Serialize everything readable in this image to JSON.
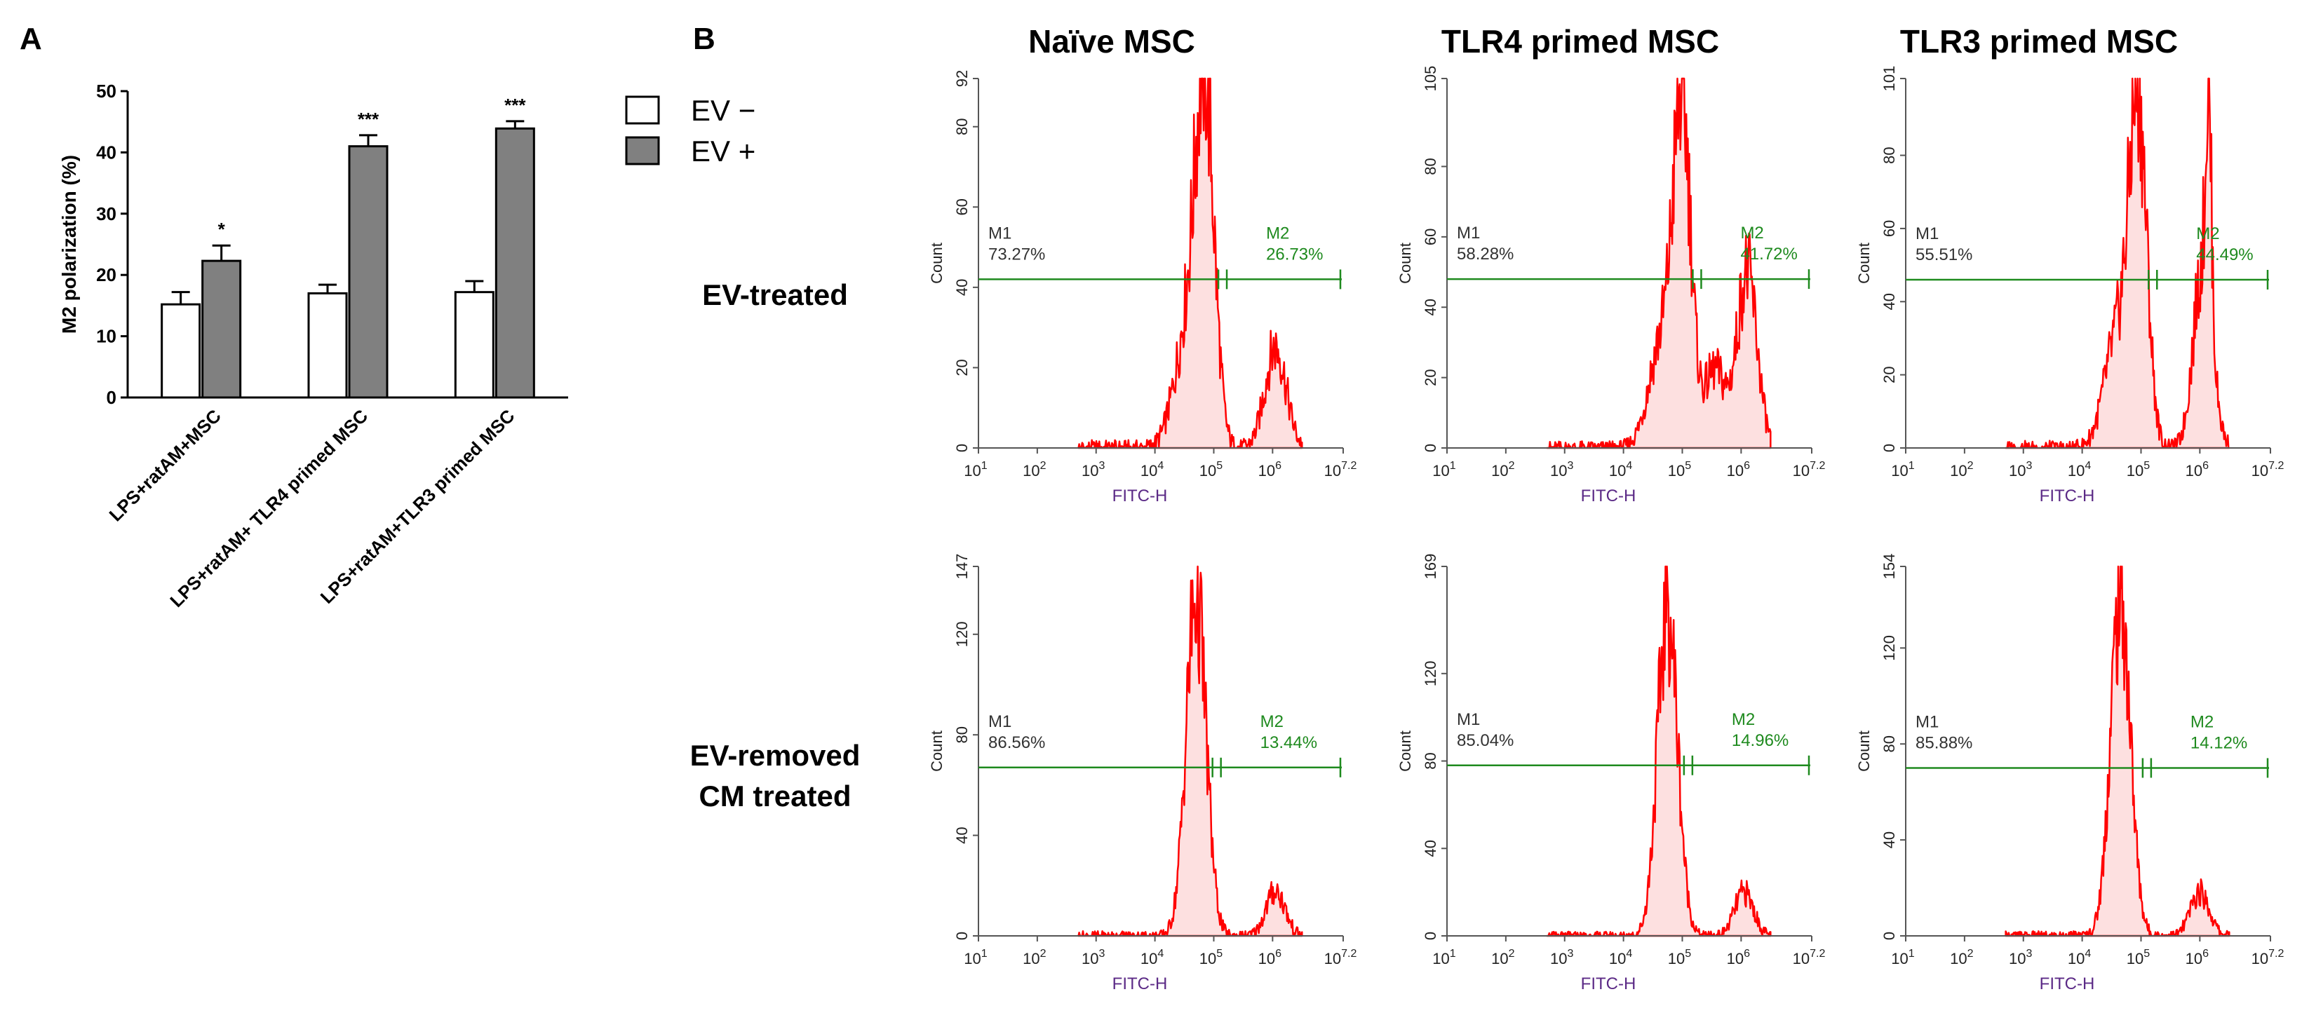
{
  "panels": {
    "A": "A",
    "B": "B"
  },
  "colors": {
    "ev_minus_fill": "#ffffff",
    "ev_plus_fill": "#808080",
    "histogram": "#ff0000",
    "histogram_fill": "#fde0e0",
    "gate": "#1e8a1e",
    "axis_label": "#5b2a86"
  },
  "chart_data": [
    {
      "id": "bar",
      "type": "bar",
      "title": "",
      "ylabel": "M2 polarization (%)",
      "ylim": [
        0,
        50
      ],
      "yticks": [
        0,
        10,
        20,
        30,
        40,
        50
      ],
      "categories": [
        "LPS+ratAM+MSC",
        "LPS+ratAM+ TLR4 primed MSC",
        "LPS+ratAM+TLR3 primed MSC"
      ],
      "series": [
        {
          "name": "EV −",
          "values": [
            15.2,
            17.0,
            17.2
          ],
          "errors": [
            2.0,
            1.4,
            1.8
          ]
        },
        {
          "name": "EV +",
          "values": [
            22.3,
            41.0,
            43.9
          ],
          "errors": [
            2.5,
            1.8,
            1.2
          ]
        }
      ],
      "significance": [
        "*",
        "***",
        "***"
      ],
      "legend_position": "right"
    },
    {
      "id": "fc",
      "type": "histogram",
      "column_titles": [
        "Naïve MSC",
        "TLR4 primed  MSC",
        "TLR3 primed  MSC"
      ],
      "row_labels": [
        "EV-treated",
        [
          "EV-removed",
          "CM treated"
        ]
      ],
      "xlabel": "FITC-H",
      "ylabel": "Count",
      "x_log_range": [
        1,
        7.2
      ],
      "xticks": [
        "10",
        "10",
        "10",
        "10",
        "10",
        "10",
        "10"
      ],
      "xtick_exponents": [
        "1",
        "2",
        "3",
        "4",
        "5",
        "6",
        "7.2"
      ],
      "gate_labels": [
        "M1",
        "M2"
      ],
      "plots": [
        {
          "row": 0,
          "col": 0,
          "ymax": 92,
          "yticks": [
            0,
            20,
            40,
            60,
            80,
            92
          ],
          "gate_level": 42,
          "gate_split": 5.15,
          "m1": "73.27%",
          "m2": "26.73%",
          "peaks": [
            [
              4.85,
              84,
              0.16
            ],
            [
              4.55,
              28,
              0.22
            ],
            [
              6.05,
              25,
              0.18
            ]
          ]
        },
        {
          "row": 0,
          "col": 1,
          "ymax": 105,
          "yticks": [
            0,
            20,
            40,
            60,
            80,
            105
          ],
          "gate_level": 48,
          "gate_split": 5.25,
          "m1": "58.28%",
          "m2": "41.72%",
          "peaks": [
            [
              5.0,
              92,
              0.15
            ],
            [
              4.65,
              30,
              0.22
            ],
            [
              6.1,
              50,
              0.17
            ],
            [
              5.55,
              22,
              0.18
            ]
          ]
        },
        {
          "row": 0,
          "col": 2,
          "ymax": 101,
          "yticks": [
            0,
            20,
            40,
            60,
            80,
            101
          ],
          "gate_level": 46,
          "gate_split": 5.2,
          "m1": "55.51%",
          "m2": "44.49%",
          "peaks": [
            [
              4.95,
              90,
              0.15
            ],
            [
              4.6,
              30,
              0.22
            ],
            [
              6.05,
              50,
              0.16
            ],
            [
              6.15,
              55,
              0.05
            ]
          ]
        },
        {
          "row": 1,
          "col": 0,
          "ymax": 147,
          "yticks": [
            0,
            40,
            80,
            120,
            147
          ],
          "gate_level": 67,
          "gate_split": 5.05,
          "m1": "86.56%",
          "m2": "13.44%",
          "peaks": [
            [
              4.7,
              135,
              0.17
            ],
            [
              6.05,
              18,
              0.16
            ]
          ]
        },
        {
          "row": 1,
          "col": 1,
          "ymax": 169,
          "yticks": [
            0,
            40,
            80,
            120,
            169
          ],
          "gate_level": 78,
          "gate_split": 5.1,
          "m1": "85.04%",
          "m2": "14.96%",
          "peaks": [
            [
              4.75,
              150,
              0.17
            ],
            [
              6.05,
              20,
              0.16
            ]
          ]
        },
        {
          "row": 1,
          "col": 2,
          "ymax": 154,
          "yticks": [
            0,
            40,
            80,
            120,
            154
          ],
          "gate_level": 70,
          "gate_split": 5.1,
          "m1": "85.88%",
          "m2": "14.12%",
          "peaks": [
            [
              4.65,
              140,
              0.17
            ],
            [
              6.0,
              18,
              0.16
            ]
          ]
        }
      ]
    }
  ]
}
